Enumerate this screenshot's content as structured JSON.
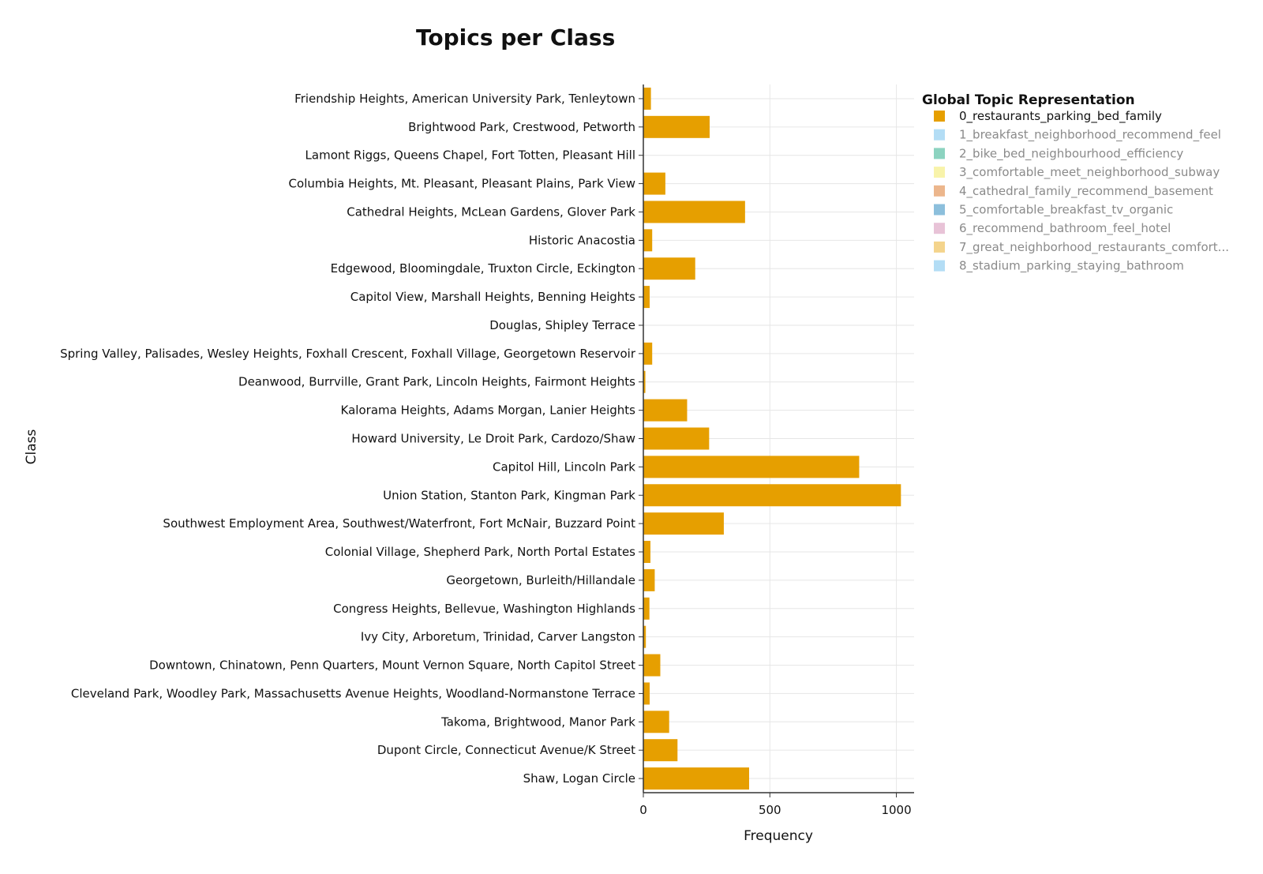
{
  "chart_data": {
    "type": "bar",
    "orientation": "horizontal",
    "title": "Topics per Class",
    "xlabel": "Frequency",
    "ylabel": "Class",
    "xlim": [
      0,
      1070
    ],
    "xticks": [
      0,
      500,
      1000
    ],
    "xtick_labels": [
      "0",
      "500",
      "1000"
    ],
    "grid": true,
    "legend_position": "right",
    "legend_title": "Global Topic Representation",
    "categories": [
      "Friendship Heights, American University Park, Tenleytown",
      "Brightwood Park, Crestwood, Petworth",
      "Lamont Riggs, Queens Chapel, Fort Totten, Pleasant Hill",
      "Columbia Heights, Mt. Pleasant, Pleasant Plains, Park View",
      "Cathedral Heights, McLean Gardens, Glover Park",
      "Historic Anacostia",
      "Edgewood, Bloomingdale, Truxton Circle, Eckington",
      "Capitol View, Marshall Heights, Benning Heights",
      "Douglas, Shipley Terrace",
      "Spring Valley, Palisades, Wesley Heights, Foxhall Crescent, Foxhall Village, Georgetown Reservoir",
      "Deanwood, Burrville, Grant Park, Lincoln Heights, Fairmont Heights",
      "Kalorama Heights, Adams Morgan, Lanier Heights",
      "Howard University, Le Droit Park, Cardozo/Shaw",
      "Capitol Hill, Lincoln Park",
      "Union Station, Stanton Park, Kingman Park",
      "Southwest Employment Area, Southwest/Waterfront, Fort McNair, Buzzard Point",
      "Colonial Village, Shepherd Park, North Portal Estates",
      "Georgetown, Burleith/Hillandale",
      "Congress Heights, Bellevue, Washington Highlands",
      "Ivy City, Arboretum, Trinidad, Carver Langston",
      "Downtown, Chinatown, Penn Quarters, Mount Vernon Square, North Capitol Street",
      "Cleveland Park, Woodley Park, Massachusetts Avenue Heights, Woodland-Normanstone Terrace",
      "Takoma, Brightwood, Manor Park",
      "Dupont Circle, Connecticut Avenue/K Street",
      "Shaw, Logan Circle"
    ],
    "series": [
      {
        "name": "0_restaurants_parking_bed_family",
        "color": "#E69F00",
        "visible": true,
        "values": [
          30,
          262,
          0,
          87,
          402,
          35,
          205,
          25,
          0,
          35,
          8,
          173,
          260,
          853,
          1018,
          318,
          28,
          45,
          24,
          10,
          67,
          25,
          102,
          135,
          418
        ]
      },
      {
        "name": "1_breakfast_neighborhood_recommend_feel",
        "color": "#56B4E9",
        "visible": false
      },
      {
        "name": "2_bike_bed_neighbourhood_efficiency",
        "color": "#009E73",
        "visible": false
      },
      {
        "name": "3_comfortable_meet_neighborhood_subway",
        "color": "#F0E442",
        "visible": false
      },
      {
        "name": "4_cathedral_family_recommend_basement",
        "color": "#D55E00",
        "visible": false
      },
      {
        "name": "5_comfortable_breakfast_tv_organic",
        "color": "#0072B2",
        "visible": false
      },
      {
        "name": "6_recommend_bathroom_feel_hotel",
        "color": "#CC79A7",
        "visible": false
      },
      {
        "name": "7_great_neighborhood_restaurants_comfort...",
        "color": "#E69F00",
        "visible": false
      },
      {
        "name": "8_stadium_parking_staying_bathroom",
        "color": "#56B4E9",
        "visible": false
      }
    ]
  }
}
